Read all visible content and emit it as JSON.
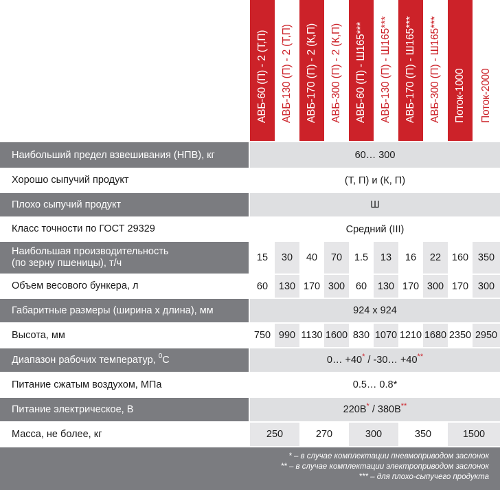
{
  "columns": [
    {
      "label": "АВБ-60 (П) - 2 (Т,П)",
      "style": "red"
    },
    {
      "label": "АВБ-130 (П) - 2 (Т,П)",
      "style": "white"
    },
    {
      "label": "АВБ-170 (П) - 2 (К,П)",
      "style": "red"
    },
    {
      "label": "АВБ-300 (П) - 2 (К,П)",
      "style": "white"
    },
    {
      "label": "АВБ-60 (П) - Ш165***",
      "style": "red"
    },
    {
      "label": "АВБ-130 (П) - Ш165***",
      "style": "white"
    },
    {
      "label": "АВБ-170 (П) - Ш165***",
      "style": "red"
    },
    {
      "label": "АВБ-300 (П) - Ш165***",
      "style": "white"
    },
    {
      "label": "Поток-1000",
      "style": "red"
    },
    {
      "label": "Поток-2000",
      "style": "white"
    }
  ],
  "rows": {
    "npv": {
      "label": "Наибольший предел взвешивания (НПВ), кг",
      "value": "60… 300"
    },
    "good_flow": {
      "label": "Хорошо сыпучий продукт",
      "value": "(Т, П) и (К, П)"
    },
    "poor_flow": {
      "label": "Плохо сыпучий продукт",
      "value": "Ш"
    },
    "accuracy": {
      "label": "Класс точности по ГОСТ 29329",
      "value": "Средний (III)"
    },
    "productivity": {
      "label_line1": "Наибольшая производительность",
      "label_line2": "(по зерну пшеницы), т/ч",
      "values": [
        "15",
        "30",
        "40",
        "70",
        "1.5",
        "13",
        "16",
        "22",
        "160",
        "350"
      ]
    },
    "bunker": {
      "label": "Объем весового бункера, л",
      "values": [
        "60",
        "130",
        "170",
        "300",
        "60",
        "130",
        "170",
        "300",
        "170",
        "300"
      ]
    },
    "dimensions": {
      "label": "Габаритные размеры (ширина х длина), мм",
      "value": "924 х 924"
    },
    "height": {
      "label": "Высота, мм",
      "values": [
        "750",
        "990",
        "1130",
        "1600",
        "830",
        "1070",
        "1210",
        "1680",
        "2350",
        "2950"
      ]
    },
    "temperature": {
      "label": "Диапазон рабочих температур,",
      "label_sup": "0",
      "label_unit": "С",
      "value_part1": "0… +40",
      "ast1": "*",
      "value_part2": " / -30… +40",
      "ast2": "**"
    },
    "air": {
      "label": "Питание сжатым воздухом, МПа",
      "value": "0.5… 0.8*"
    },
    "power": {
      "label": "Питание электрическое, В",
      "value_part1": "220В",
      "ast1": "*",
      "value_part2": " / 380В",
      "ast2": "**"
    },
    "mass": {
      "label": "Масса, не более, кг",
      "values": [
        "250",
        "270",
        "300",
        "350",
        "1500"
      ]
    }
  },
  "footnotes": [
    "* – в случае комплектации пневмоприводом заслонок",
    "** – в случае комплектации электроприводом заслонок",
    "*** – для плохо-сыпучего продукта"
  ],
  "colors": {
    "accent": "#cc2229",
    "dark_row": "#7b7c80",
    "light_fill": "#dedfe1"
  }
}
